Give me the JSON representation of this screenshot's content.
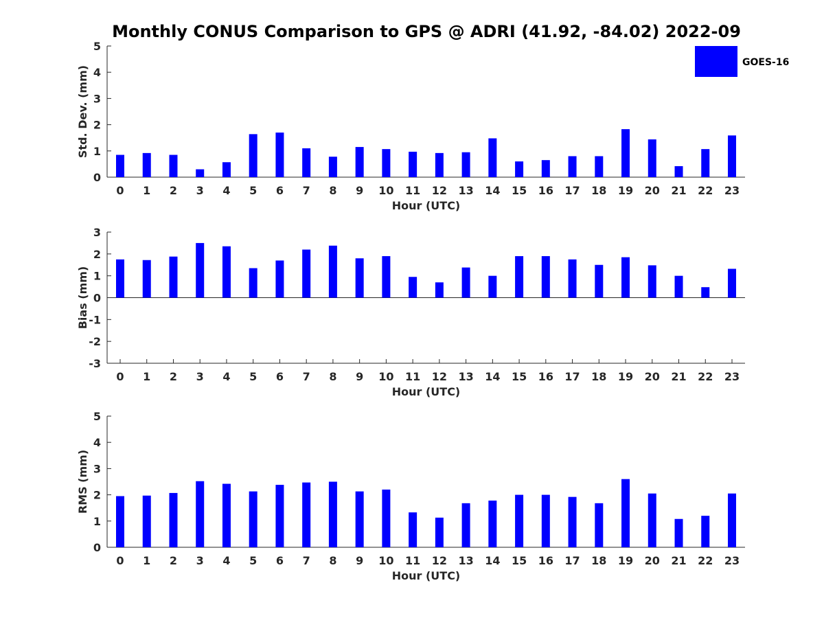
{
  "figure": {
    "title": "Monthly CONUS Comparison to GPS @ ADRI (41.92, -84.02) 2022-09",
    "bar_color": "#0000ff",
    "legend": {
      "label": "GOES-16",
      "placement": "top-right"
    }
  },
  "chart_data": [
    {
      "type": "bar",
      "xlabel": "Hour (UTC)",
      "ylabel": "Std. Dev. (mm)",
      "ylim": [
        0,
        5
      ],
      "yticks": [
        "0",
        "1",
        "2",
        "3",
        "4",
        "5"
      ],
      "categories": [
        "0",
        "1",
        "2",
        "3",
        "4",
        "5",
        "6",
        "7",
        "8",
        "9",
        "10",
        "11",
        "12",
        "13",
        "14",
        "15",
        "16",
        "17",
        "18",
        "19",
        "20",
        "21",
        "22",
        "23"
      ],
      "series": [
        {
          "name": "GOES-16",
          "values": [
            0.85,
            0.92,
            0.85,
            0.3,
            0.57,
            1.64,
            1.7,
            1.1,
            0.78,
            1.15,
            1.07,
            0.97,
            0.92,
            0.95,
            1.48,
            0.6,
            0.65,
            0.8,
            0.8,
            1.83,
            1.44,
            0.42,
            1.07,
            1.59
          ]
        }
      ],
      "grid": false
    },
    {
      "type": "bar",
      "xlabel": "Hour (UTC)",
      "ylabel": "Bias (mm)",
      "ylim": [
        -3,
        3
      ],
      "yticks": [
        "-3",
        "-2",
        "-1",
        "0",
        "1",
        "2",
        "3"
      ],
      "categories": [
        "0",
        "1",
        "2",
        "3",
        "4",
        "5",
        "6",
        "7",
        "8",
        "9",
        "10",
        "11",
        "12",
        "13",
        "14",
        "15",
        "16",
        "17",
        "18",
        "19",
        "20",
        "21",
        "22",
        "23"
      ],
      "series": [
        {
          "name": "GOES-16",
          "values": [
            1.75,
            1.72,
            1.88,
            2.5,
            2.35,
            1.35,
            1.7,
            2.2,
            2.38,
            1.8,
            1.9,
            0.95,
            0.7,
            1.38,
            1.0,
            1.9,
            1.9,
            1.75,
            1.5,
            1.85,
            1.48,
            1.0,
            0.48,
            1.32
          ]
        }
      ],
      "grid": false
    },
    {
      "type": "bar",
      "xlabel": "Hour (UTC)",
      "ylabel": "RMS (mm)",
      "ylim": [
        0,
        5
      ],
      "yticks": [
        "0",
        "1",
        "2",
        "3",
        "4",
        "5"
      ],
      "categories": [
        "0",
        "1",
        "2",
        "3",
        "4",
        "5",
        "6",
        "7",
        "8",
        "9",
        "10",
        "11",
        "12",
        "13",
        "14",
        "15",
        "16",
        "17",
        "18",
        "19",
        "20",
        "21",
        "22",
        "23"
      ],
      "series": [
        {
          "name": "GOES-16",
          "values": [
            1.95,
            1.97,
            2.07,
            2.52,
            2.42,
            2.13,
            2.38,
            2.47,
            2.5,
            2.13,
            2.2,
            1.33,
            1.13,
            1.68,
            1.78,
            2.0,
            2.0,
            1.92,
            1.68,
            2.6,
            2.05,
            1.08,
            1.2,
            2.05
          ]
        }
      ],
      "grid": false
    }
  ]
}
